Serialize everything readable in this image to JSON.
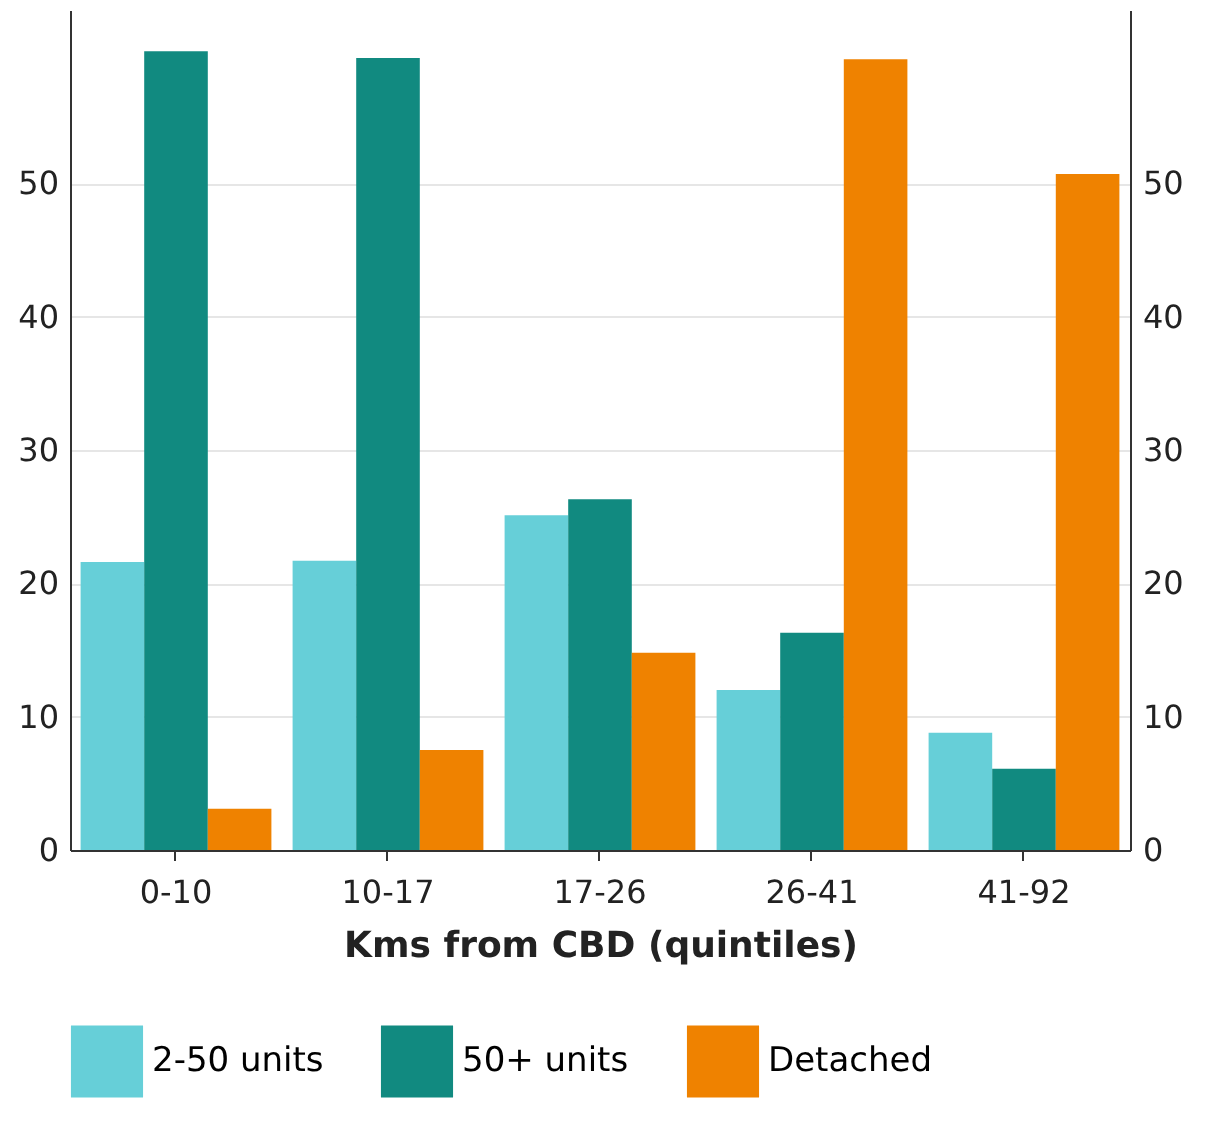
{
  "chart_data": {
    "type": "bar",
    "xlabel": "Kms from CBD (quintiles)",
    "categories": [
      "0-10",
      "10-17",
      "17-26",
      "26-41",
      "41-92"
    ],
    "series": [
      {
        "name": "2-50 units",
        "color": "#66cfd8",
        "values": [
          21.6,
          21.7,
          25.1,
          12.0,
          8.8
        ]
      },
      {
        "name": "50+ units",
        "color": "#118a80",
        "values": [
          59.9,
          59.4,
          26.3,
          16.3,
          6.1
        ]
      },
      {
        "name": "Detached",
        "color": "#ef8200",
        "values": [
          3.1,
          7.5,
          14.8,
          59.3,
          50.7
        ]
      }
    ],
    "ylim": [
      0,
      63
    ],
    "yticks": [
      0,
      10,
      20,
      30,
      40,
      50
    ],
    "y2lim": [
      0,
      63
    ],
    "y2ticks": [
      0,
      10,
      20,
      30,
      40,
      50
    ],
    "grid": "y",
    "legend": "bottom"
  }
}
